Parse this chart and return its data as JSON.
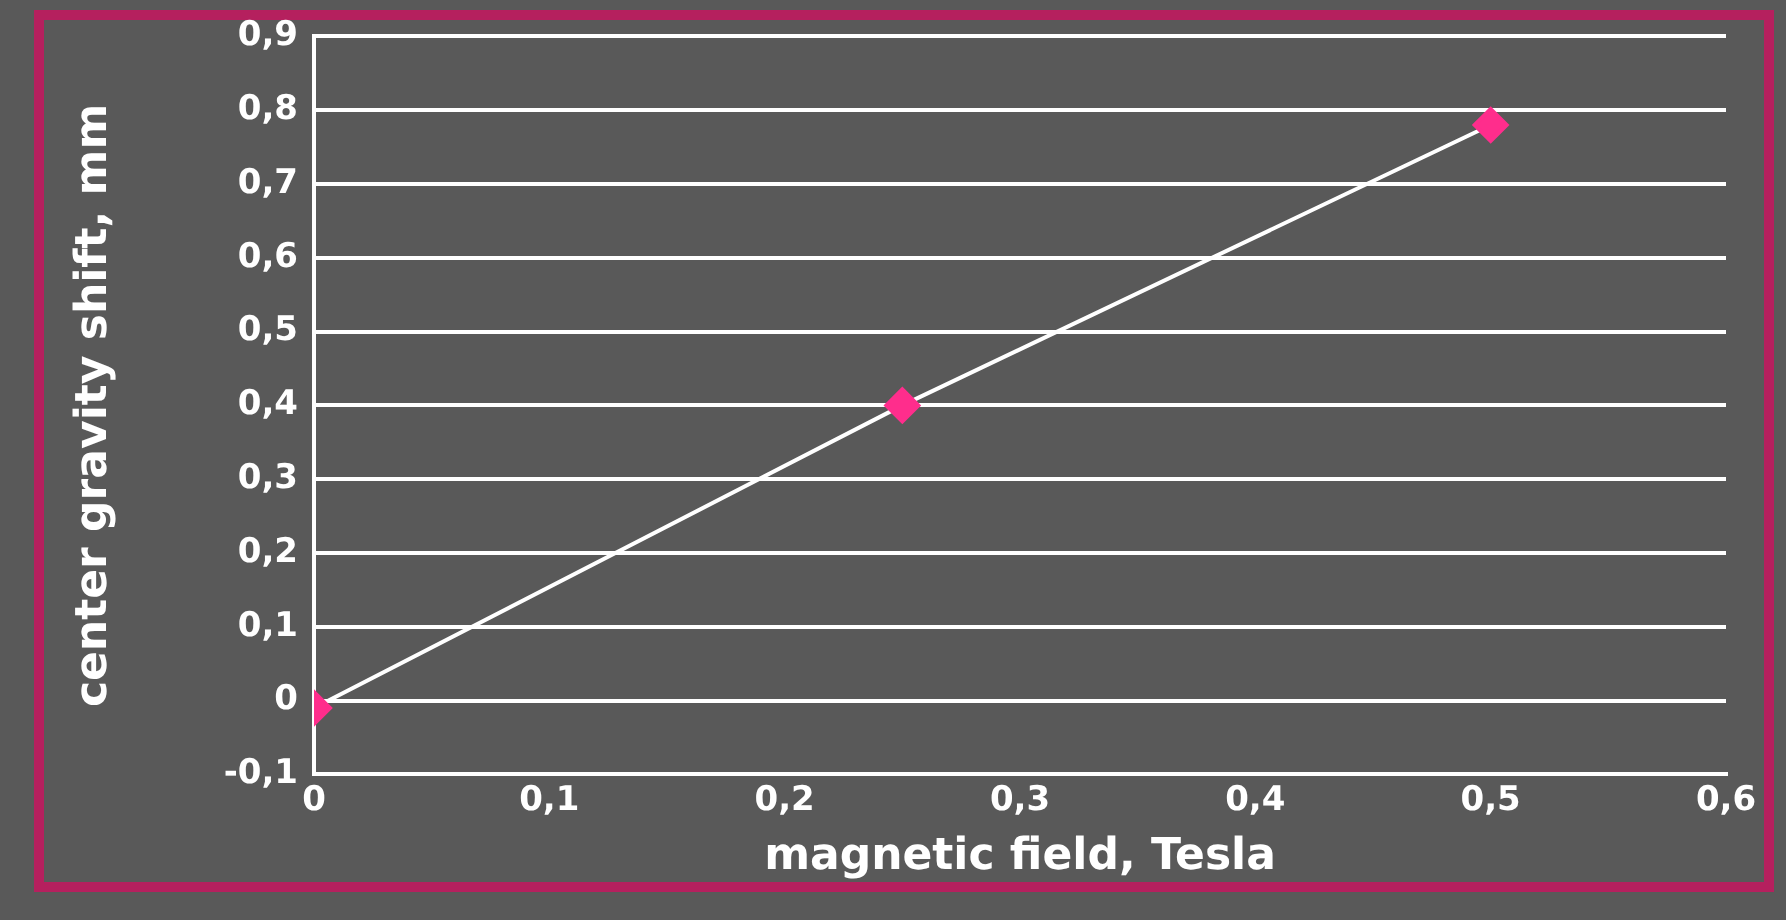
{
  "chart_data": {
    "type": "line",
    "xlabel": "magnetic field, Tesla",
    "ylabel": "center gravity shift, mm",
    "x": [
      0,
      0.25,
      0.5
    ],
    "series": [
      {
        "color": "#ff2d8c",
        "values": [
          -0.01,
          0.4,
          0.78
        ]
      }
    ],
    "xlim": [
      0,
      0.6
    ],
    "xticks": [
      0,
      {
        "value": 0.1,
        "label": "0,1"
      },
      {
        "value": 0.2,
        "label": "0,2"
      },
      {
        "value": 0.3,
        "label": "0,3"
      },
      {
        "value": 0.4,
        "label": "0,4"
      },
      {
        "value": 0.5,
        "label": "0,5"
      },
      {
        "value": 0.6,
        "label": "0,6"
      }
    ],
    "ylim": [
      -0.1,
      0.9
    ],
    "yticks": [
      {
        "value": -0.1,
        "label": "-0,1"
      },
      0,
      {
        "value": 0.1,
        "label": "0,1"
      },
      {
        "value": 0.2,
        "label": "0,2"
      },
      {
        "value": 0.3,
        "label": "0,3"
      },
      {
        "value": 0.4,
        "label": "0,4"
      },
      {
        "value": 0.5,
        "label": "0,5"
      },
      {
        "value": 0.6,
        "label": "0,6"
      },
      {
        "value": 0.7,
        "label": "0,7"
      },
      {
        "value": 0.8,
        "label": "0,8"
      },
      {
        "value": 0.9,
        "label": "0,9"
      }
    ],
    "grid": "y",
    "marker": "diamond",
    "legend": false
  }
}
